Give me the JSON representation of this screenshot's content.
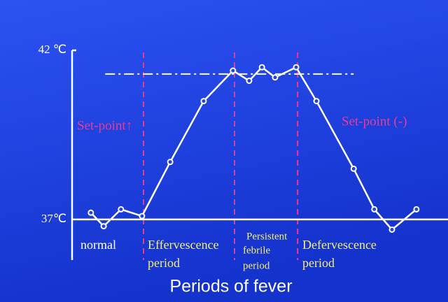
{
  "chart_data": {
    "type": "line",
    "title": "Periods of fever",
    "x": [
      5.0,
      8.4,
      13.0,
      18.6,
      26.1,
      35.0,
      42.8,
      47.1,
      50.5,
      54.0,
      59.6,
      65.0,
      74.9,
      80.4,
      85.1,
      91.6
    ],
    "series": [
      {
        "color": "#ffffff",
        "values": [
          37.2,
          36.8,
          37.3,
          37.1,
          38.7,
          40.5,
          41.4,
          41.1,
          41.5,
          41.2,
          41.5,
          40.5,
          38.5,
          37.3,
          36.7,
          37.3
        ]
      }
    ],
    "xlim": [
      0,
      100
    ],
    "ylim": [
      35.8,
      42
    ],
    "yticks": [
      {
        "value": 37,
        "label": "37℃"
      },
      {
        "value": 42,
        "label": "42 ℃"
      }
    ],
    "set_point": {
      "value": 41.3,
      "x": [
        8.8,
        74.9
      ]
    },
    "dividers": [
      19.0,
      43.2,
      60.0
    ],
    "annotations": {
      "set_point_up": "Set-point↑",
      "set_point_down": "Set-point (-)",
      "normal": "normal",
      "effervescence": [
        "Effervescence",
        "period"
      ],
      "persistent": [
        "Persistent",
        "febrile",
        "period"
      ],
      "defervescence": [
        "Defervescence",
        "period"
      ]
    }
  }
}
